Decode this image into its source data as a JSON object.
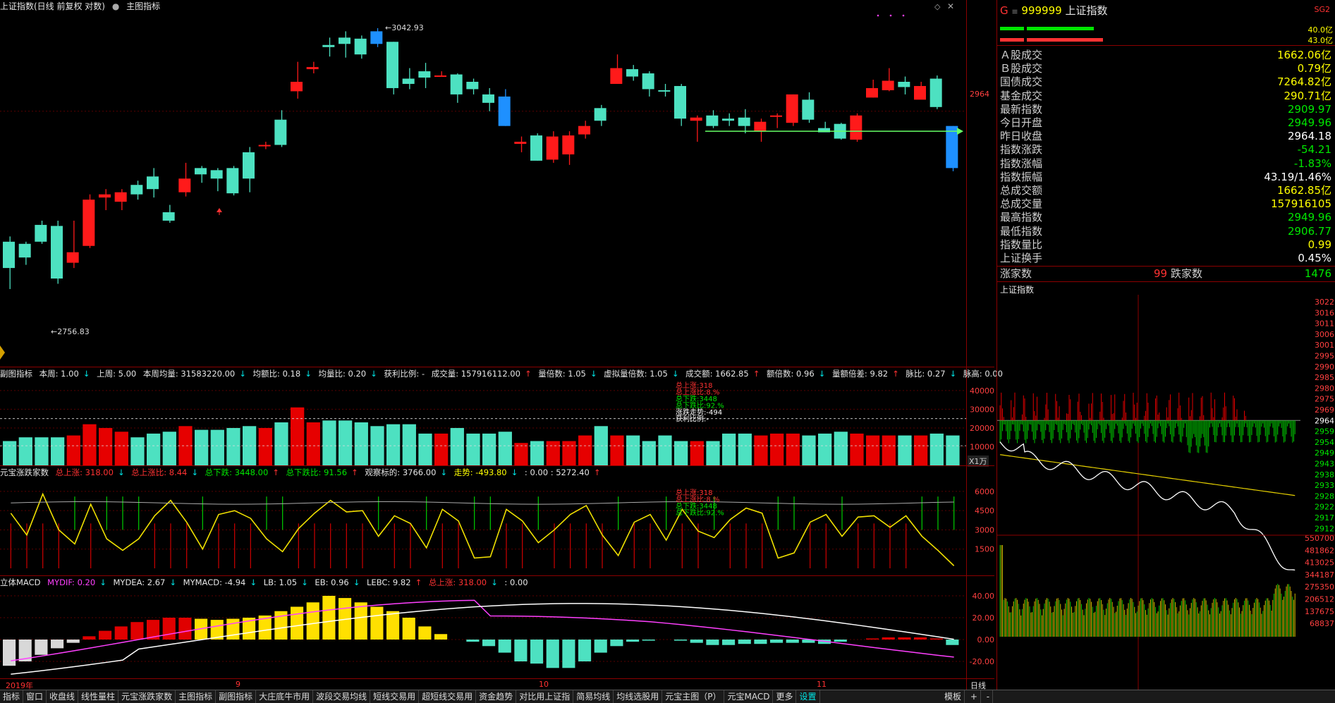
{
  "main_chart": {
    "title": "上证指数(日线 前复权 对数)",
    "indicator_label": "主图指标",
    "high_label": "3042.93",
    "low_label": "2756.83",
    "price_tick": "2964",
    "candles": [
      [
        2840,
        2815,
        2845,
        2795,
        "u"
      ],
      [
        2825,
        2838,
        2840,
        2818,
        "d"
      ],
      [
        2840,
        2856,
        2860,
        2838,
        "d"
      ],
      [
        2855,
        2805,
        2860,
        2800,
        "u"
      ],
      [
        2820,
        2830,
        2860,
        2815,
        "u"
      ],
      [
        2836,
        2880,
        2885,
        2834,
        "u"
      ],
      [
        2882,
        2885,
        2890,
        2870,
        "u"
      ],
      [
        2878,
        2887,
        2890,
        2870,
        "u"
      ],
      [
        2885,
        2894,
        2898,
        2880,
        "d"
      ],
      [
        2902,
        2890,
        2910,
        2882,
        "u"
      ],
      [
        2868,
        2860,
        2875,
        2858,
        "u"
      ],
      [
        2887,
        2900,
        2915,
        2883,
        "u"
      ],
      [
        2904,
        2910,
        2912,
        2896,
        "d"
      ],
      [
        2908,
        2900,
        2910,
        2888,
        "d"
      ],
      [
        2886,
        2910,
        2912,
        2884,
        "d"
      ],
      [
        2925,
        2900,
        2930,
        2887,
        "u"
      ],
      [
        2931,
        2932,
        2935,
        2928,
        "u"
      ],
      [
        2956,
        2932,
        2965,
        2930,
        "u"
      ],
      [
        2983,
        2992,
        3011,
        2976,
        "u"
      ],
      [
        3004,
        3006,
        3011,
        3000,
        "u"
      ],
      [
        3027,
        3025,
        3034,
        3016,
        "d"
      ],
      [
        3034,
        3028,
        3040,
        3015,
        "d"
      ],
      [
        3033,
        3018,
        3036,
        3014,
        "d"
      ],
      [
        3040,
        3028,
        3043,
        3025,
        "b"
      ],
      [
        3030,
        2986,
        3030,
        2980,
        "d"
      ],
      [
        2995,
        2990,
        3005,
        2985,
        "u"
      ],
      [
        3002,
        2996,
        3010,
        2986,
        "u"
      ],
      [
        2998,
        2998,
        3002,
        2998,
        "u"
      ],
      [
        2999,
        2980,
        3000,
        2972,
        "d"
      ],
      [
        2992,
        2985,
        2995,
        2980,
        "u"
      ],
      [
        2972,
        2980,
        2986,
        2964,
        "d"
      ],
      [
        2978,
        2950,
        2985,
        2950,
        "b"
      ],
      [
        2933,
        2935,
        2940,
        2925,
        "u"
      ],
      [
        2941,
        2917,
        2943,
        2917,
        "d"
      ],
      [
        2918,
        2940,
        2945,
        2915,
        "u"
      ],
      [
        2923,
        2941,
        2945,
        2913,
        "u"
      ],
      [
        2942,
        2950,
        2955,
        2938,
        "u"
      ],
      [
        2967,
        2955,
        2970,
        2950,
        "u"
      ],
      [
        2990,
        3005,
        3018,
        2990,
        "u"
      ],
      [
        3004,
        2997,
        3008,
        2993,
        "u"
      ],
      [
        3000,
        2985,
        3002,
        2978,
        "d"
      ],
      [
        2984,
        2984,
        2990,
        2978,
        "d"
      ],
      [
        2988,
        2957,
        2990,
        2950,
        "d"
      ],
      [
        2955,
        2958,
        2960,
        2935,
        "u"
      ],
      [
        2950,
        2960,
        2965,
        2948,
        "d"
      ],
      [
        2955,
        2957,
        2962,
        2950,
        "d"
      ],
      [
        2958,
        2950,
        2966,
        2943,
        "d"
      ],
      [
        2945,
        2954,
        2957,
        2935,
        "u"
      ],
      [
        2960,
        2960,
        2962,
        2948,
        "u"
      ],
      [
        2953,
        2980,
        2980,
        2950,
        "u"
      ],
      [
        2975,
        2956,
        2982,
        2953,
        "d"
      ],
      [
        2944,
        2948,
        2954,
        2945,
        "d"
      ],
      [
        2952,
        2938,
        2953,
        2937,
        "d"
      ],
      [
        2937,
        2960,
        2962,
        2935,
        "u"
      ],
      [
        2977,
        2986,
        2994,
        2977,
        "u"
      ],
      [
        2984,
        2993,
        3005,
        2983,
        "u"
      ],
      [
        2992,
        2987,
        2997,
        2980,
        "d"
      ],
      [
        2975,
        2988,
        2992,
        2977,
        "u"
      ],
      [
        2995,
        2968,
        2998,
        2966,
        "d"
      ],
      [
        2950,
        2910,
        2950,
        2907,
        "b"
      ]
    ]
  },
  "sub1": {
    "name": "副图指标",
    "items": [
      "本周: 1.00",
      "上周: 5.00",
      "本周均量: 31583220.00",
      "均额比: 0.18",
      "均量比: 0.20",
      "获利比例: -",
      "成交量: 157916112.00",
      "量倍数: 1.05",
      "虚拟量倍数: 1.05",
      "成交额: 1662.85",
      "额倍数: 0.96",
      "量额倍差: 9.82",
      "脉比: 0.27",
      "脉高: 0.00"
    ],
    "axis": [
      "40000",
      "30000",
      "20000",
      "10000"
    ],
    "unit": "X1万",
    "overlay": [
      "总上涨:318",
      "总上涨比:8.%",
      "总下跌:3448",
      "总下跌比:92.%",
      "涨跌走势:-494",
      "获利比例:-"
    ]
  },
  "sub2": {
    "name": "元宝涨跌家数",
    "items": [
      "总上涨: 318.00",
      "总上涨比: 8.44",
      "总下跌: 3448.00",
      "总下跌比: 91.56",
      "观察标的: 3766.00",
      "走势: -493.80",
      ": 0.00 : 5272.40"
    ],
    "axis": [
      "6000",
      "4500",
      "3000",
      "1500"
    ]
  },
  "sub3": {
    "name": "立体MACD",
    "items": [
      "MYDIF: 0.20",
      "MYDEA: 2.67",
      "MYMACD: -4.94",
      "LB: 1.05",
      "EB: 0.96",
      "LEBC: 9.82",
      "总上涨: 318.00",
      ": 0.00"
    ],
    "axis": [
      "40.00",
      "20.00",
      "0.00",
      "-20.00"
    ]
  },
  "time_axis": {
    "year": "2019年",
    "months": [
      "9",
      "10",
      "11"
    ],
    "period": "日线"
  },
  "right_panel": {
    "code": "999999",
    "name": "上证指数",
    "badge": "SG2",
    "bars": [
      "40.0亿",
      "43.0亿"
    ],
    "rows": [
      {
        "label": "Ａ股成交",
        "value": "1662.06亿",
        "color": "#ffff00"
      },
      {
        "label": "Ｂ股成交",
        "value": "0.79亿",
        "color": "#ffff00"
      },
      {
        "label": "国债成交",
        "value": "7264.82亿",
        "color": "#ffff00"
      },
      {
        "label": "基金成交",
        "value": "290.71亿",
        "color": "#ffff00"
      },
      {
        "label": "最新指数",
        "value": "2909.97",
        "color": "#00e600"
      },
      {
        "label": "今日开盘",
        "value": "2949.96",
        "color": "#00e600"
      },
      {
        "label": "昨日收盘",
        "value": "2964.18",
        "color": "#ffffff"
      },
      {
        "label": "指数涨跌",
        "value": "-54.21",
        "color": "#00e600"
      },
      {
        "label": "指数涨幅",
        "value": "-1.83%",
        "color": "#00e600"
      },
      {
        "label": "指数振幅",
        "value": "43.19/1.46%",
        "color": "#ffffff"
      },
      {
        "label": "总成交额",
        "value": "1662.85亿",
        "color": "#ffff00"
      },
      {
        "label": "总成交量",
        "value": "157916105",
        "color": "#ffff00"
      },
      {
        "label": "最高指数",
        "value": "2949.96",
        "color": "#00e600"
      },
      {
        "label": "最低指数",
        "value": "2906.77",
        "color": "#00e600"
      },
      {
        "label": "指数量比",
        "value": "0.99",
        "color": "#ffff00"
      },
      {
        "label": "上证换手",
        "value": "0.45%",
        "color": "#ffffff"
      }
    ],
    "breadth": {
      "up_label": "涨家数",
      "up": "99",
      "down_label": "跌家数",
      "down": "1476"
    },
    "mini_title": "上证指数",
    "mini_axis": [
      "3022",
      "3016",
      "3011",
      "3006",
      "3001",
      "2995",
      "2990",
      "2985",
      "2980",
      "2975",
      "2969",
      "2964",
      "2959",
      "2954",
      "2949",
      "2943",
      "2938",
      "2933",
      "2928",
      "2922",
      "2917",
      "2912"
    ],
    "vol_axis": [
      "550700",
      "481862",
      "413025",
      "344187",
      "275350",
      "206512",
      "137675",
      "68837"
    ]
  },
  "tabs": [
    "指标",
    "窗口",
    "收盘线",
    "线性量柱",
    "元宝涨跌家数",
    "主图指标",
    "副图指标",
    "大庄底牛市用",
    "波段交易均线",
    "短线交易用",
    "超短线交易用",
    "资金趋势",
    "对比用上证指",
    "简易均线",
    "均线选股用",
    "元宝主图（P）",
    "元宝MACD",
    "更多",
    "设置"
  ],
  "active_tab": "设置",
  "tab_right": [
    "模板",
    "+",
    "-"
  ]
}
